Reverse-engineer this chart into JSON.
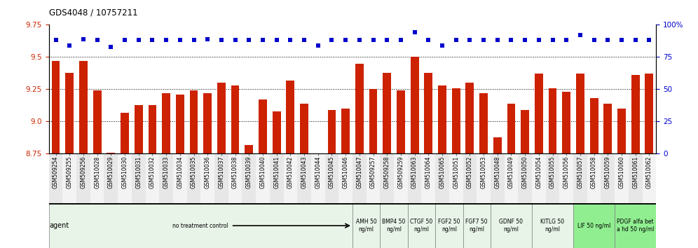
{
  "title": "GDS4048 / 10757211",
  "samples": [
    "GSM509254",
    "GSM509255",
    "GSM509256",
    "GSM510028",
    "GSM510029",
    "GSM510030",
    "GSM510031",
    "GSM510032",
    "GSM510033",
    "GSM510034",
    "GSM510035",
    "GSM510036",
    "GSM510037",
    "GSM510038",
    "GSM510039",
    "GSM510040",
    "GSM510041",
    "GSM510042",
    "GSM510043",
    "GSM510044",
    "GSM510045",
    "GSM510046",
    "GSM510047",
    "GSM509257",
    "GSM509258",
    "GSM509259",
    "GSM510063",
    "GSM510064",
    "GSM510065",
    "GSM510051",
    "GSM510052",
    "GSM510053",
    "GSM510048",
    "GSM510049",
    "GSM510050",
    "GSM510054",
    "GSM510055",
    "GSM510056",
    "GSM510057",
    "GSM510058",
    "GSM510059",
    "GSM510060",
    "GSM510061",
    "GSM510062"
  ],
  "bar_values": [
    9.47,
    9.38,
    9.47,
    9.24,
    8.76,
    9.07,
    9.13,
    9.13,
    9.22,
    9.21,
    9.24,
    9.22,
    9.3,
    9.28,
    8.82,
    9.17,
    9.08,
    9.32,
    9.14,
    8.75,
    9.09,
    9.1,
    9.45,
    9.25,
    9.38,
    9.24,
    9.5,
    9.38,
    9.28,
    9.26,
    9.3,
    9.22,
    8.88,
    9.14,
    9.09,
    9.37,
    9.26,
    9.23,
    9.37,
    9.18,
    9.14,
    9.1,
    9.36,
    9.37
  ],
  "percentile_values": [
    88,
    84,
    89,
    88,
    83,
    88,
    88,
    88,
    88,
    88,
    88,
    89,
    88,
    88,
    88,
    88,
    88,
    88,
    88,
    84,
    88,
    88,
    88,
    88,
    88,
    88,
    94,
    88,
    84,
    88,
    88,
    88,
    88,
    88,
    88,
    88,
    88,
    88,
    92,
    88,
    88,
    88,
    88,
    88
  ],
  "bar_color": "#cc2200",
  "dot_color": "#0000cc",
  "ylim_left": [
    8.75,
    9.75
  ],
  "ylim_right": [
    0,
    100
  ],
  "yticks_left": [
    8.75,
    9.0,
    9.25,
    9.5,
    9.75
  ],
  "yticks_right": [
    0,
    25,
    50,
    75,
    100
  ],
  "agent_groups": [
    {
      "label": "no treatment control",
      "start": 0,
      "end": 22,
      "color": "#e8f4e8"
    },
    {
      "label": "AMH 50\nng/ml",
      "start": 22,
      "end": 24,
      "color": "#e8f4e8"
    },
    {
      "label": "BMP4 50\nng/ml",
      "start": 24,
      "end": 26,
      "color": "#e8f4e8"
    },
    {
      "label": "CTGF 50\nng/ml",
      "start": 26,
      "end": 28,
      "color": "#e8f4e8"
    },
    {
      "label": "FGF2 50\nng/ml",
      "start": 28,
      "end": 30,
      "color": "#e8f4e8"
    },
    {
      "label": "FGF7 50\nng/ml",
      "start": 30,
      "end": 32,
      "color": "#e8f4e8"
    },
    {
      "label": "GDNF 50\nng/ml",
      "start": 32,
      "end": 35,
      "color": "#e8f4e8"
    },
    {
      "label": "KITLG 50\nng/ml",
      "start": 35,
      "end": 38,
      "color": "#e8f4e8"
    },
    {
      "label": "LIF 50 ng/ml",
      "start": 38,
      "end": 41,
      "color": "#90ee90"
    },
    {
      "label": "PDGF alfa bet\na hd 50 ng/ml",
      "start": 41,
      "end": 44,
      "color": "#90ee90"
    }
  ],
  "xlabel": "",
  "ylabel_left": "",
  "ylabel_right": ""
}
